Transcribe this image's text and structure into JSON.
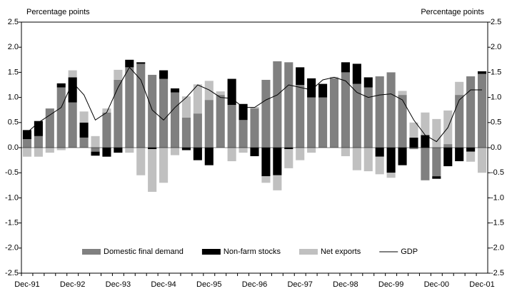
{
  "chart_data": {
    "type": "stacked-bar-line",
    "ylabel": "Percentage points",
    "y2label": "Percentage points",
    "categories": [
      "Dec-91",
      null,
      null,
      null,
      "Dec-92",
      null,
      null,
      null,
      "Dec-93",
      null,
      null,
      null,
      "Dec-94",
      null,
      null,
      null,
      "Dec-95",
      null,
      null,
      null,
      "Dec-96",
      null,
      null,
      null,
      "Dec-97",
      null,
      null,
      null,
      "Dec-98",
      null,
      null,
      null,
      "Dec-99",
      null,
      null,
      null,
      "Dec-00",
      null,
      null,
      null,
      "Dec-01"
    ],
    "series": [
      {
        "name": "Domestic final demand",
        "color": "#808080",
        "kind": "bar",
        "values": [
          0.17,
          0.23,
          0.78,
          1.2,
          0.9,
          0.2,
          -0.08,
          0.7,
          1.35,
          1.6,
          1.67,
          1.45,
          1.37,
          1.1,
          0.6,
          0.68,
          0.95,
          1.05,
          0.85,
          0.55,
          0.78,
          1.35,
          1.72,
          1.7,
          1.25,
          1.0,
          1.0,
          1.38,
          1.5,
          1.27,
          1.2,
          1.42,
          1.5,
          1.05,
          -0.03,
          -0.65,
          -0.57,
          0.07,
          1.05,
          1.42,
          1.47
        ]
      },
      {
        "name": "Non-farm stocks",
        "color": "#000000",
        "kind": "bar",
        "values": [
          0.18,
          0.3,
          0.0,
          0.08,
          0.5,
          0.3,
          -0.08,
          -0.18,
          -0.1,
          0.15,
          0.03,
          -0.03,
          0.17,
          0.08,
          -0.05,
          -0.25,
          -0.35,
          0.0,
          0.52,
          0.32,
          -0.17,
          -0.57,
          -0.55,
          -0.03,
          0.35,
          0.38,
          0.27,
          0.0,
          0.2,
          0.4,
          0.2,
          -0.18,
          -0.5,
          -0.35,
          0.2,
          0.25,
          -0.05,
          -0.37,
          -0.27,
          -0.08,
          0.05
        ]
      },
      {
        "name": "Net exports",
        "color": "#c0c0c0",
        "kind": "bar",
        "values": [
          -0.18,
          -0.18,
          -0.1,
          -0.05,
          0.14,
          0.22,
          0.23,
          0.08,
          0.2,
          -0.1,
          -0.55,
          -0.85,
          -0.7,
          -0.15,
          0.42,
          0.58,
          0.38,
          0.07,
          -0.27,
          -0.1,
          0.03,
          -0.13,
          -0.3,
          -0.38,
          -0.25,
          -0.1,
          0.0,
          0.03,
          -0.17,
          -0.45,
          -0.47,
          -0.35,
          -0.1,
          0.08,
          0.3,
          0.45,
          0.57,
          0.67,
          0.26,
          -0.2,
          -0.5
        ]
      },
      {
        "name": "GDP",
        "color": "#000000",
        "kind": "line",
        "values": [
          0.3,
          0.5,
          0.65,
          0.8,
          1.3,
          1.05,
          0.55,
          0.7,
          1.2,
          1.6,
          1.35,
          0.75,
          0.55,
          0.8,
          1.0,
          1.25,
          1.15,
          1.0,
          0.98,
          0.8,
          0.8,
          0.95,
          1.05,
          1.25,
          1.2,
          1.15,
          1.35,
          1.4,
          1.33,
          1.1,
          1.0,
          1.05,
          1.07,
          0.95,
          0.55,
          0.25,
          0.12,
          0.4,
          0.95,
          1.15,
          1.15
        ]
      }
    ],
    "ylim": [
      -2.5,
      2.5
    ],
    "yticks": [
      {
        "value": -2.5,
        "label": "-2.5"
      },
      {
        "value": -2.0,
        "label": "-2.0"
      },
      {
        "value": -1.5,
        "label": "-1.5"
      },
      {
        "value": -1.0,
        "label": "-1.0"
      },
      {
        "value": -0.5,
        "label": "-0.5"
      },
      {
        "value": 0,
        "label": "0.0"
      },
      {
        "value": 0.5,
        "label": "0.5"
      },
      {
        "value": 1.0,
        "label": "1.0"
      },
      {
        "value": 1.5,
        "label": "1.5"
      },
      {
        "value": 2.0,
        "label": "2.0"
      },
      {
        "value": 2.5,
        "label": "2.5"
      }
    ],
    "legend": "bottom"
  }
}
